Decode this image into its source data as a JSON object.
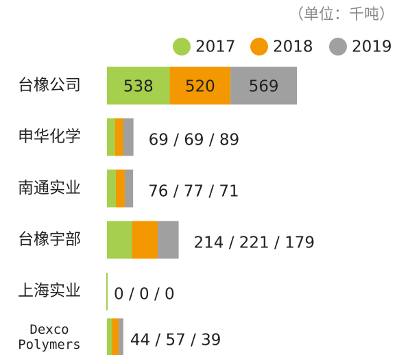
{
  "chart_data": {
    "type": "stacked-bar-horizontal",
    "unit_label": "（单位：千吨）",
    "categories": [
      "台橡公司",
      "申华化学",
      "南通实业",
      "台橡宇部",
      "上海实业",
      "Dexco Polymers"
    ],
    "series": [
      {
        "name": "2017",
        "color": "#a5cf4c",
        "values": [
          538,
          69,
          76,
          214,
          0,
          44
        ]
      },
      {
        "name": "2018",
        "color": "#f39800",
        "values": [
          520,
          69,
          77,
          221,
          0,
          57
        ]
      },
      {
        "name": "2019",
        "color": "#a0a0a0",
        "values": [
          569,
          89,
          71,
          179,
          0,
          39
        ]
      }
    ],
    "bar_labels": [
      null,
      "69 / 69 / 89",
      "76 / 77 / 71",
      "214 / 221 / 179",
      "0 / 0 / 0",
      "44 / 57 / 39"
    ]
  }
}
